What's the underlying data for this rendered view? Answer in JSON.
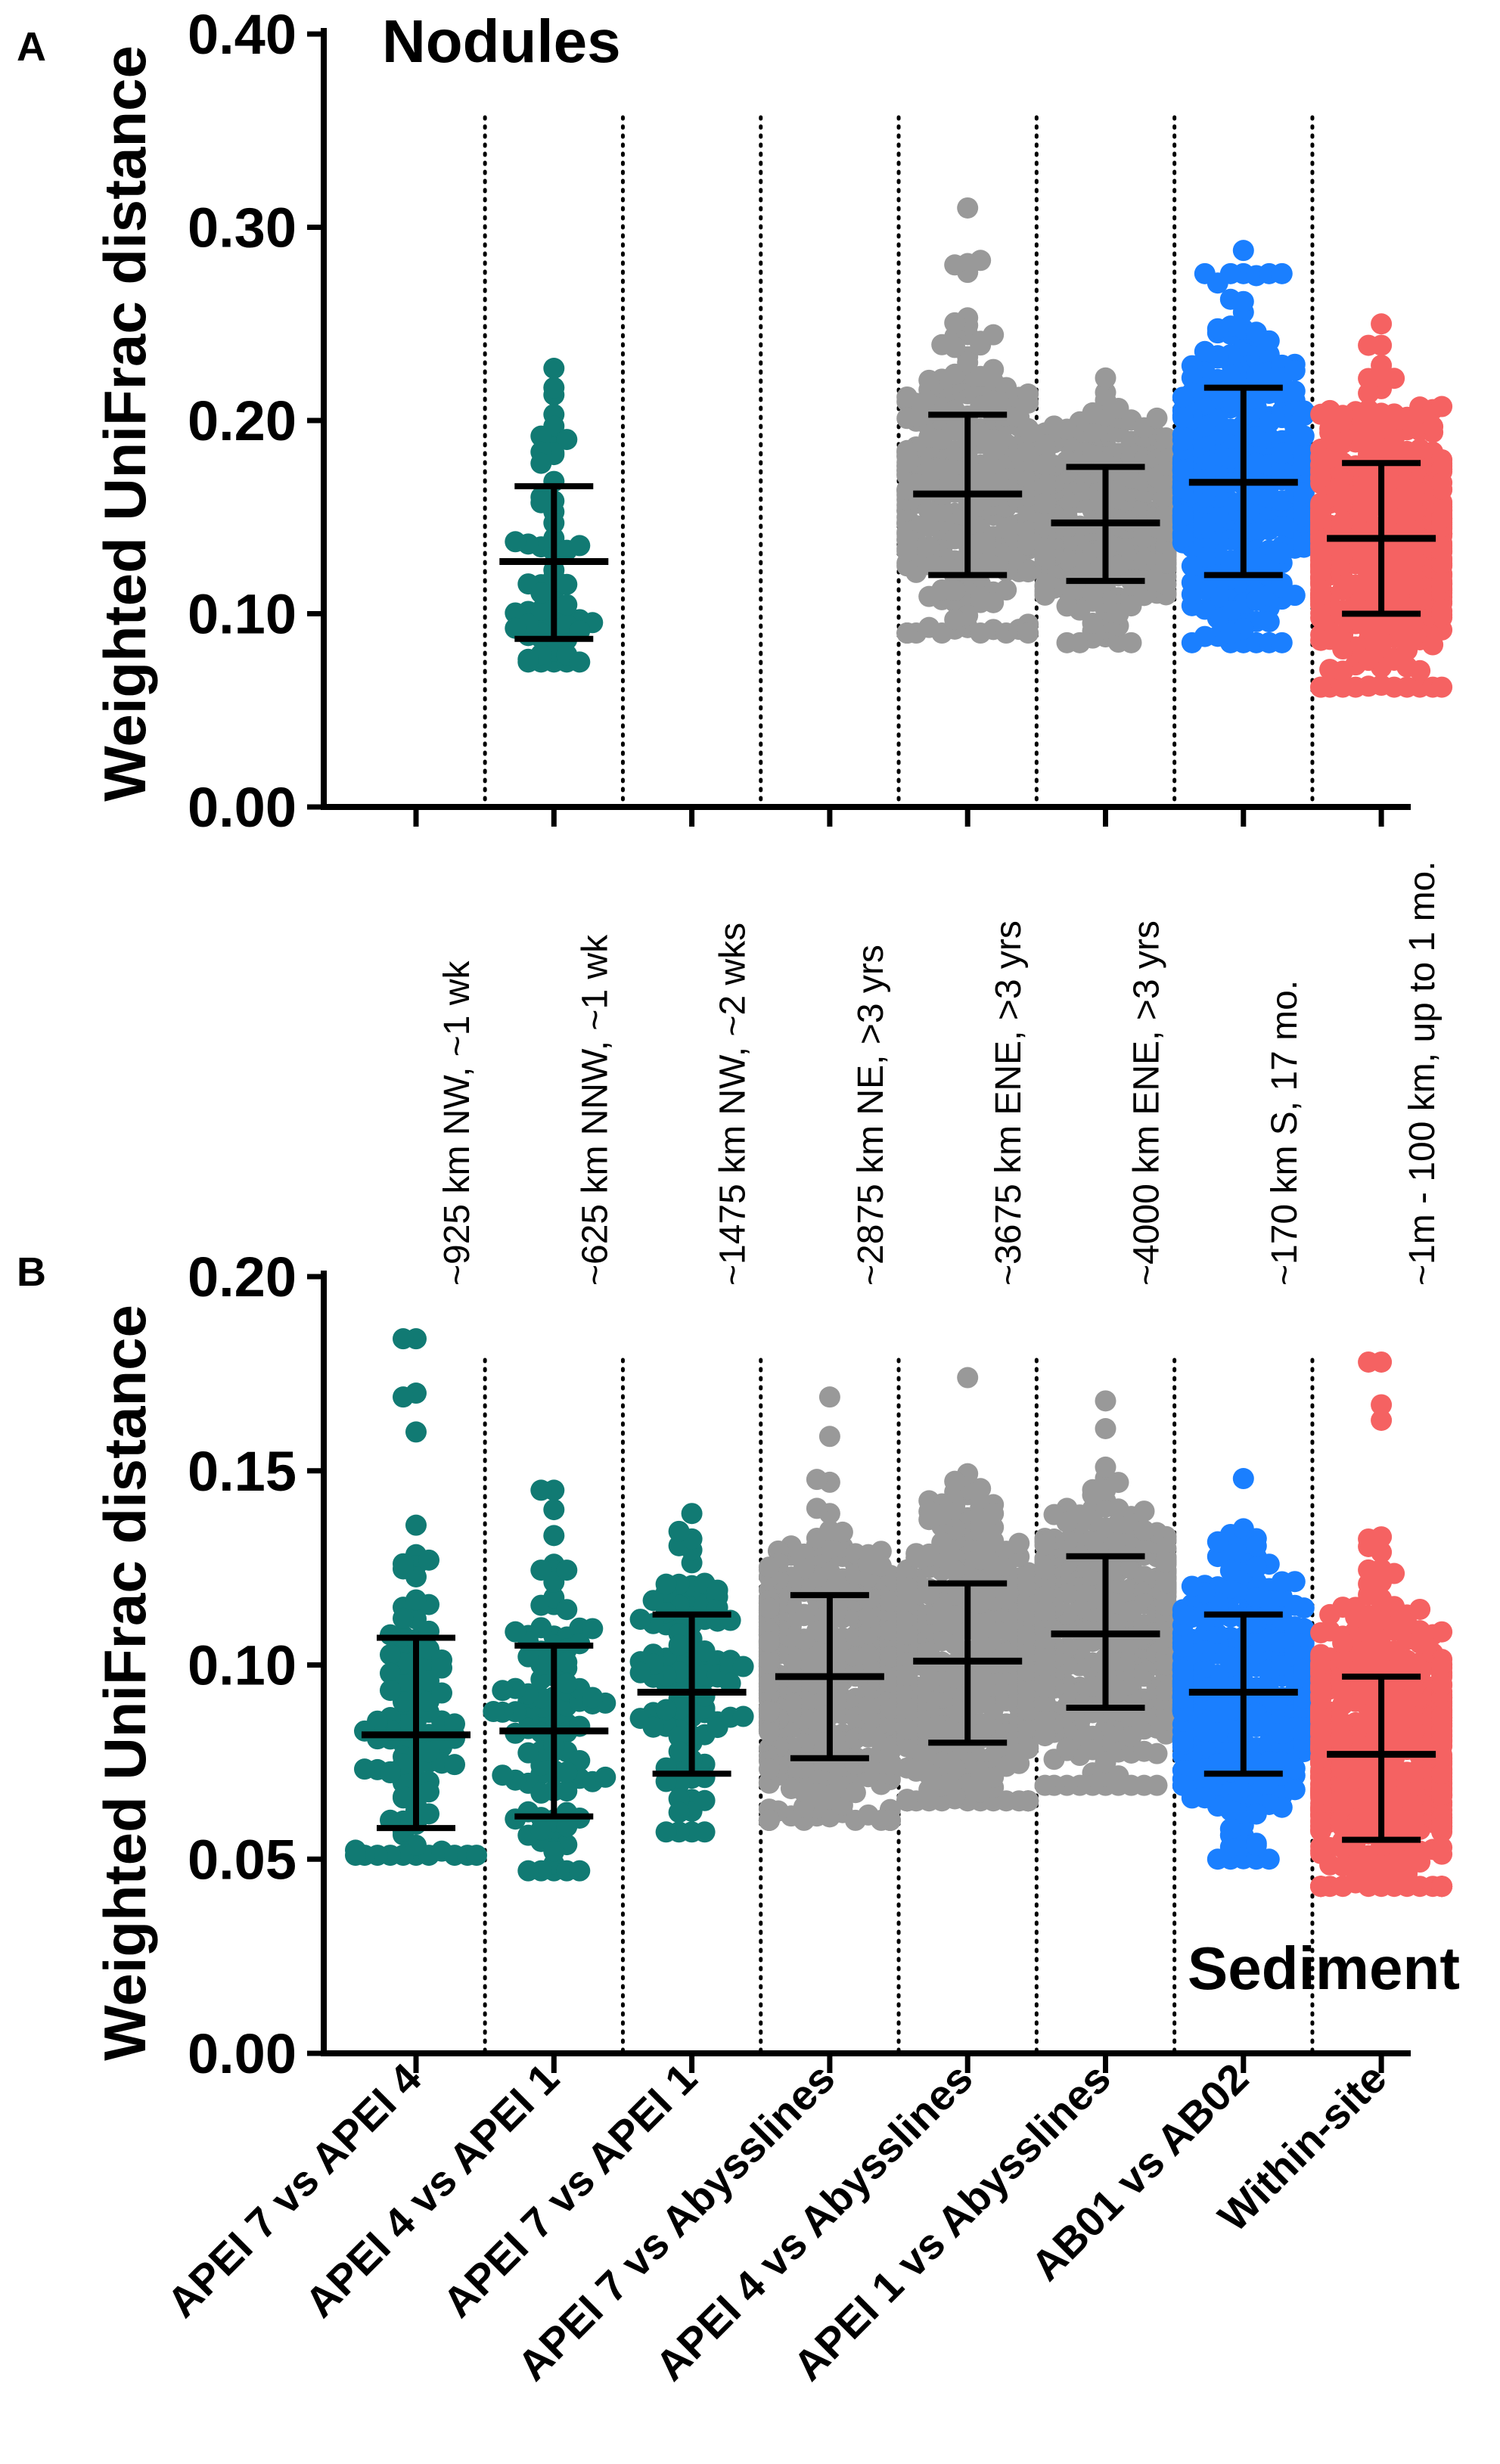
{
  "chart_data": [
    {
      "panel": "A",
      "type": "scatter",
      "title": "Nodules",
      "ylabel": "Weighted UniFrac distance",
      "xlabel": "",
      "ylim": [
        0,
        0.4
      ],
      "yticks": [
        "0.00",
        "0.10",
        "0.20",
        "0.30",
        "0.40"
      ],
      "ytick_values": [
        0,
        0.1,
        0.2,
        0.3,
        0.4
      ],
      "categories": [
        "APEI 7 vs APEI 4",
        "APEI 4 vs APEI 1",
        "APEI 7 vs APEI 1",
        "APEI 7 vs Abysslines",
        "APEI 4 vs Abysslines",
        "APEI 1 vs Abysslines",
        "AB01 vs AB02",
        "Within-site"
      ],
      "annotations": [
        "~925 km NW, ~1 wk",
        "~625 km NNW, ~1 wk",
        "~1475 km NW, ~2 wks",
        "~2875 km NE, >3 yrs",
        "~3675 km ENE, >3 yrs",
        "~4000 km ENE, >3 yrs",
        "~170 km S, 17 mo.",
        "~1m - 100 km, up to 1 mo."
      ],
      "series": [
        {
          "category": "APEI 7 vs APEI 4",
          "color": "",
          "n": 0,
          "mean": null,
          "sd_low": null,
          "sd_high": null,
          "min": null,
          "max": null
        },
        {
          "category": "APEI 4 vs APEI 1",
          "color": "#117a73",
          "n": 60,
          "mean": 0.127,
          "sd_low": 0.087,
          "sd_high": 0.166,
          "min": 0.075,
          "max": 0.227
        },
        {
          "category": "APEI 7 vs APEI 1",
          "color": "",
          "n": 0,
          "mean": null,
          "sd_low": null,
          "sd_high": null,
          "min": null,
          "max": null
        },
        {
          "category": "APEI 7 vs Abysslines",
          "color": "",
          "n": 0,
          "mean": null,
          "sd_low": null,
          "sd_high": null,
          "min": null,
          "max": null
        },
        {
          "category": "APEI 4 vs Abysslines",
          "color": "#999999",
          "n": 260,
          "mean": 0.162,
          "sd_low": 0.12,
          "sd_high": 0.203,
          "min": 0.09,
          "max": 0.31
        },
        {
          "category": "APEI 1 vs Abysslines",
          "color": "#999999",
          "n": 320,
          "mean": 0.147,
          "sd_low": 0.117,
          "sd_high": 0.176,
          "min": 0.085,
          "max": 0.222
        },
        {
          "category": "AB01 vs AB02",
          "color": "#1a7fff",
          "n": 300,
          "mean": 0.168,
          "sd_low": 0.12,
          "sd_high": 0.217,
          "min": 0.085,
          "max": 0.288
        },
        {
          "category": "Within-site",
          "color": "#f56262",
          "n": 380,
          "mean": 0.139,
          "sd_low": 0.1,
          "sd_high": 0.178,
          "min": 0.062,
          "max": 0.25
        }
      ]
    },
    {
      "panel": "B",
      "type": "scatter",
      "title": "Sediment",
      "ylabel": "Weighted UniFrac distance",
      "xlabel": "",
      "ylim": [
        0,
        0.2
      ],
      "yticks": [
        "0.00",
        "0.05",
        "0.10",
        "0.15",
        "0.20"
      ],
      "ytick_values": [
        0,
        0.05,
        0.1,
        0.15,
        0.2
      ],
      "categories": [
        "APEI 7 vs APEI 4",
        "APEI 4 vs APEI 1",
        "APEI 7 vs APEI 1",
        "APEI 7 vs Abysslines",
        "APEI 4 vs Abysslines",
        "APEI 1 vs Abysslines",
        "AB01 vs AB02",
        "Within-site"
      ],
      "series": [
        {
          "category": "APEI 7 vs APEI 4",
          "color": "#117a73",
          "n": 100,
          "mean": 0.082,
          "sd_low": 0.058,
          "sd_high": 0.107,
          "min": 0.051,
          "max": 0.184,
          "outliers": [
            0.184,
            0.17,
            0.169,
            0.16,
            0.136,
            0.127
          ]
        },
        {
          "category": "APEI 4 vs APEI 1",
          "color": "#117a73",
          "n": 100,
          "mean": 0.083,
          "sd_low": 0.061,
          "sd_high": 0.105,
          "min": 0.047,
          "max": 0.145,
          "outliers": [
            0.145,
            0.14
          ]
        },
        {
          "category": "APEI 7 vs APEI 1",
          "color": "#117a73",
          "n": 100,
          "mean": 0.093,
          "sd_low": 0.072,
          "sd_high": 0.113,
          "min": 0.057,
          "max": 0.139,
          "outliers": []
        },
        {
          "category": "APEI 7 vs Abysslines",
          "color": "#999999",
          "n": 420,
          "mean": 0.097,
          "sd_low": 0.076,
          "sd_high": 0.118,
          "min": 0.06,
          "max": 0.169,
          "outliers": []
        },
        {
          "category": "APEI 4 vs Abysslines",
          "color": "#999999",
          "n": 420,
          "mean": 0.101,
          "sd_low": 0.08,
          "sd_high": 0.121,
          "min": 0.065,
          "max": 0.174,
          "outliers": []
        },
        {
          "category": "APEI 1 vs Abysslines",
          "color": "#999999",
          "n": 420,
          "mean": 0.108,
          "sd_low": 0.089,
          "sd_high": 0.128,
          "min": 0.069,
          "max": 0.168,
          "outliers": []
        },
        {
          "category": "AB01 vs AB02",
          "color": "#1a7fff",
          "n": 300,
          "mean": 0.093,
          "sd_low": 0.072,
          "sd_high": 0.113,
          "min": 0.05,
          "max": 0.148,
          "outliers": []
        },
        {
          "category": "Within-site",
          "color": "#f56262",
          "n": 420,
          "mean": 0.077,
          "sd_low": 0.055,
          "sd_high": 0.097,
          "min": 0.043,
          "max": 0.178,
          "outliers": [
            0.178,
            0.167,
            0.163
          ]
        }
      ]
    }
  ]
}
